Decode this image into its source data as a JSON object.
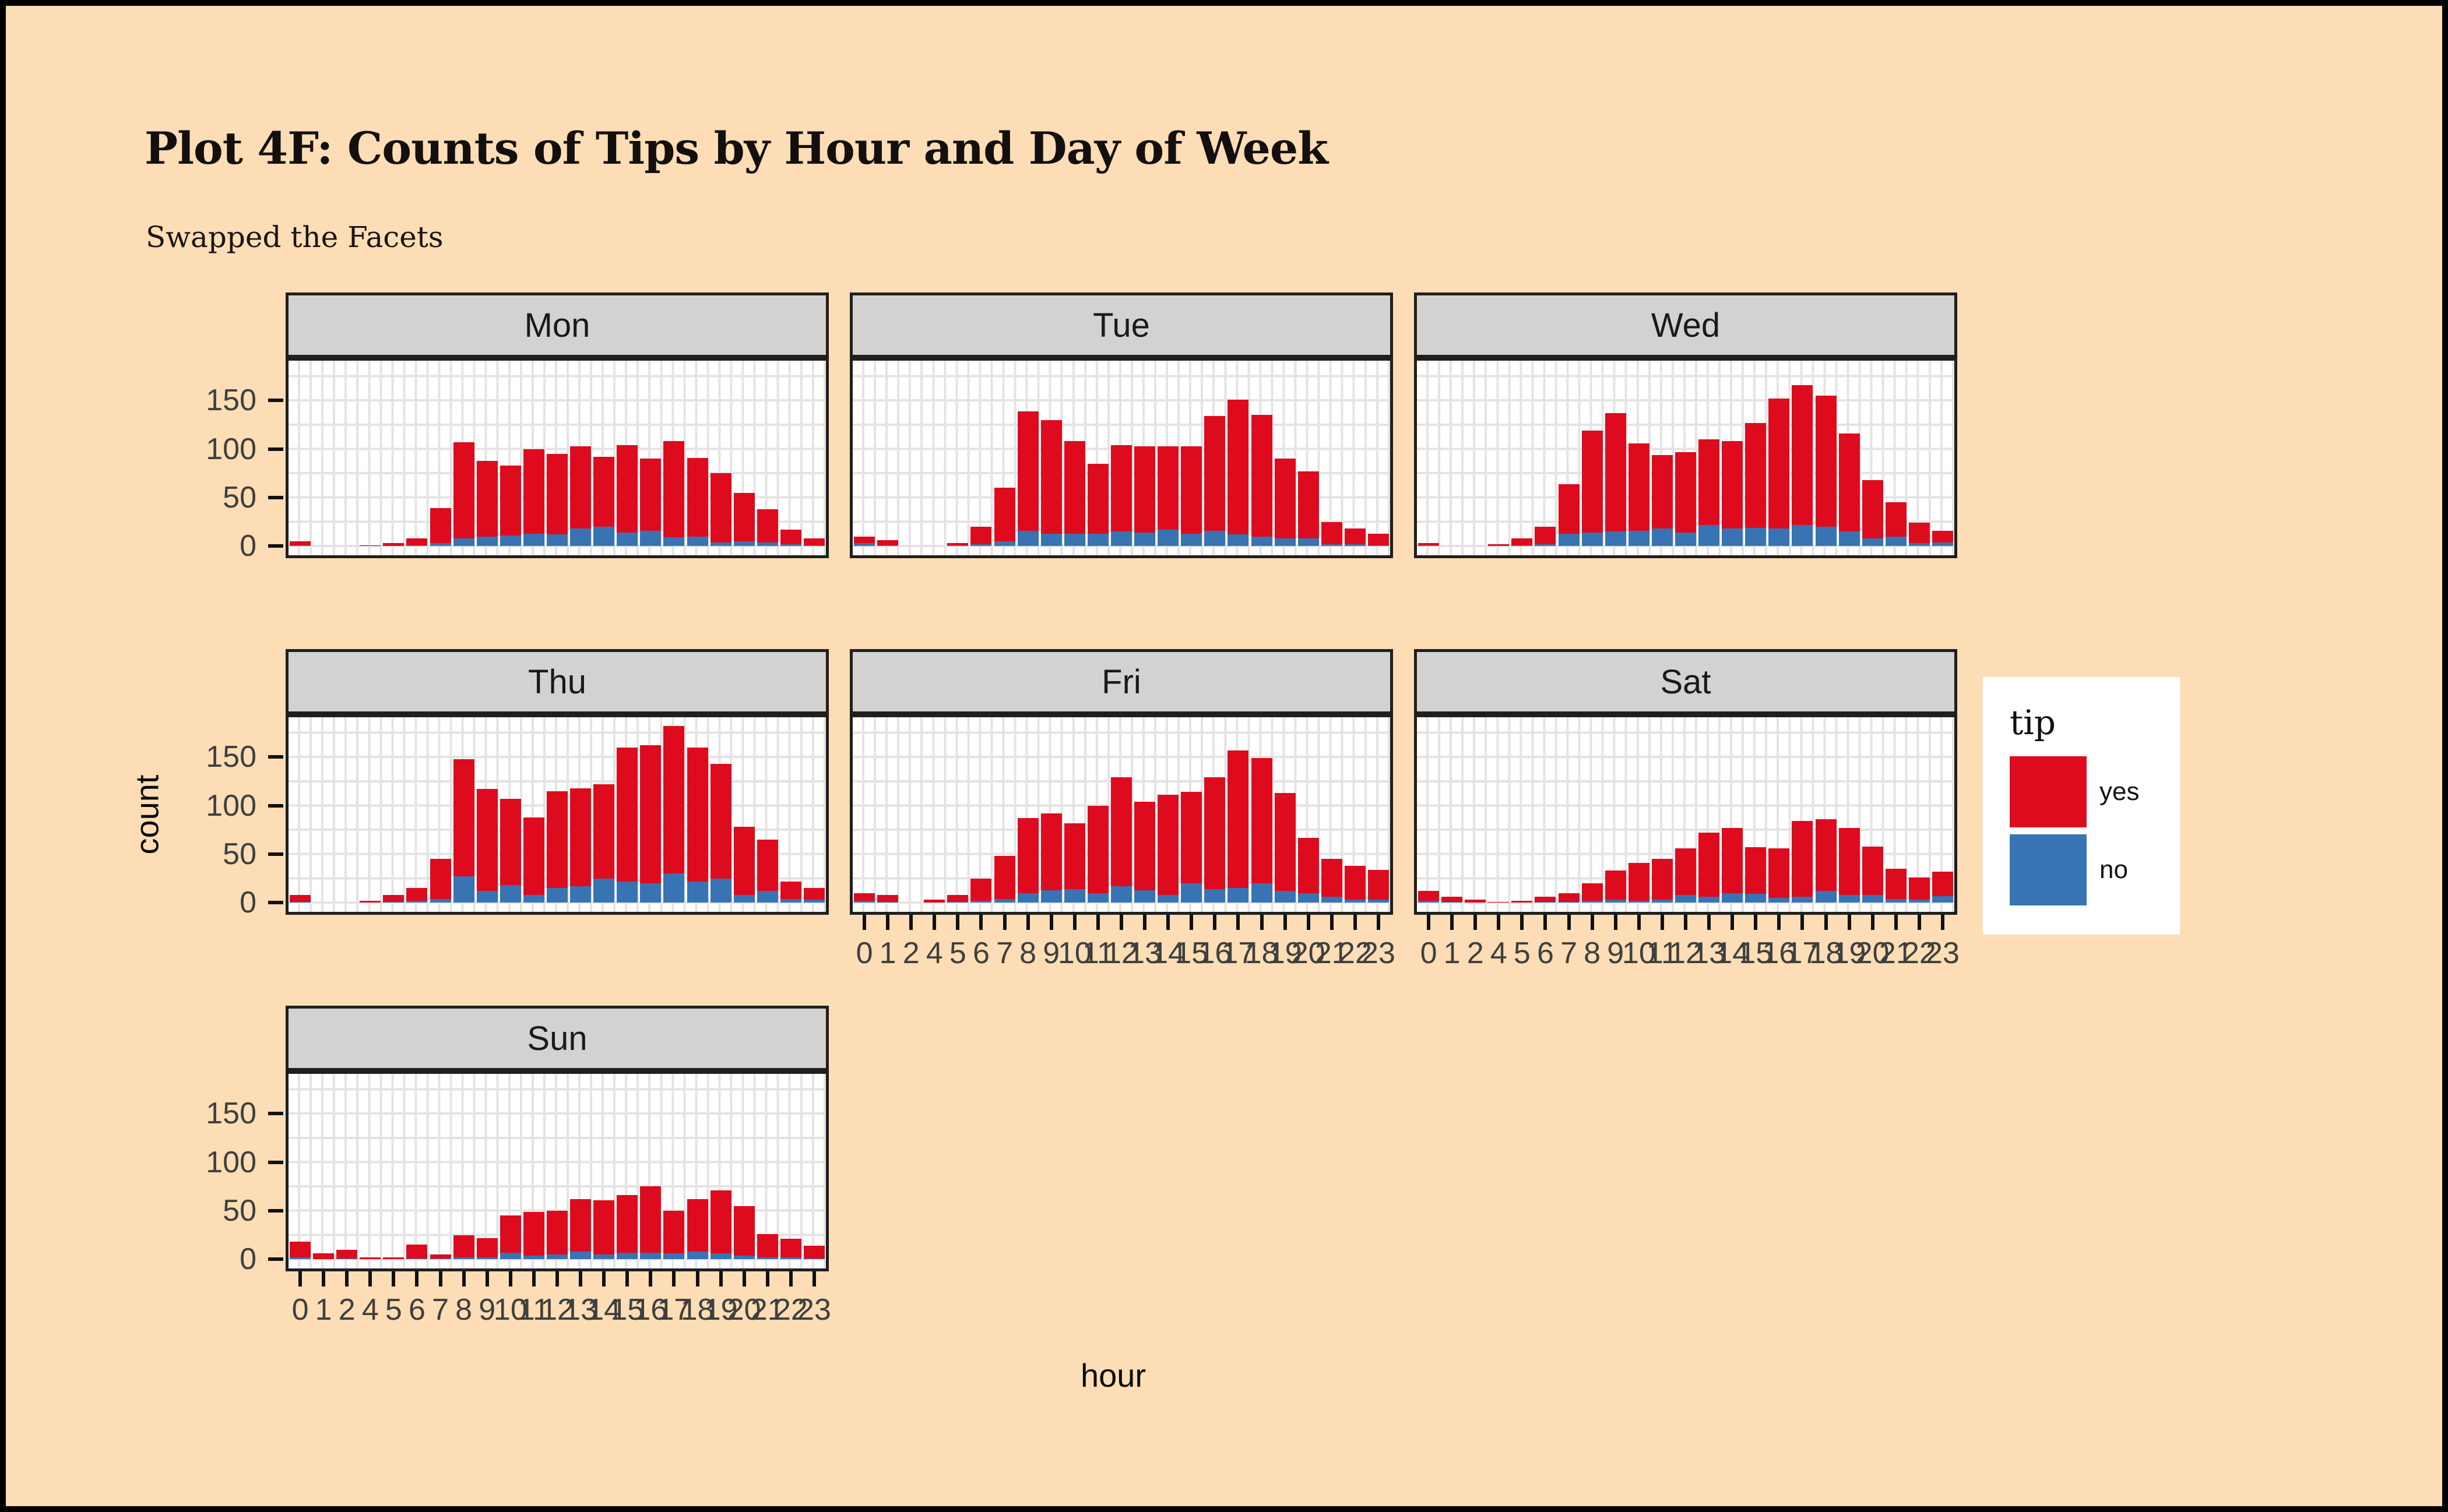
{
  "window": {
    "background_color": "#FCDDB5",
    "frame_color": "#000000"
  },
  "header": {
    "title": "Plot 4F: Counts of Tips by Hour and Day of Week",
    "subtitle": "Swapped the Facets"
  },
  "axes": {
    "x_title": "hour",
    "y_title": "count",
    "y_tick_labels": [
      "0",
      "50",
      "100",
      "150"
    ],
    "y_tick_values": [
      0,
      50,
      100,
      150
    ]
  },
  "legend": {
    "title": "tip",
    "items": [
      {
        "label": "yes",
        "color": "#DE0B1E"
      },
      {
        "label": "no",
        "color": "#3873B4"
      }
    ]
  },
  "chart_data": {
    "type": "bar",
    "stacked": true,
    "grid": "on",
    "legend_position": "right",
    "title": "Plot 4F: Counts of Tips by Hour and Day of Week",
    "xlabel": "hour",
    "ylabel": "count",
    "ylim": [
      0,
      191
    ],
    "y_minor_step": 25,
    "colors": {
      "yes": "#DE0B1E",
      "no": "#3873B4"
    },
    "categories": [
      "0",
      "1",
      "2",
      "4",
      "5",
      "6",
      "7",
      "8",
      "9",
      "10",
      "11",
      "12",
      "13",
      "14",
      "15",
      "16",
      "17",
      "18",
      "19",
      "20",
      "21",
      "22",
      "23"
    ],
    "facets": [
      {
        "name": "Mon",
        "series": [
          {
            "name": "no",
            "values": [
              1,
              0,
              0,
              0,
              0,
              1,
              3,
              8,
              10,
              11,
              13,
              12,
              18,
              20,
              14,
              16,
              9,
              10,
              4,
              5,
              4,
              2,
              1
            ]
          },
          {
            "name": "yes",
            "values": [
              4,
              0,
              0,
              1,
              3,
              7,
              36,
              99,
              78,
              72,
              87,
              83,
              85,
              72,
              90,
              74,
              99,
              81,
              71,
              50,
              34,
              15,
              7
            ]
          }
        ]
      },
      {
        "name": "Tue",
        "series": [
          {
            "name": "no",
            "values": [
              3,
              1,
              0,
              0,
              1,
              2,
              5,
              16,
              13,
              13,
              13,
              15,
              14,
              17,
              13,
              16,
              12,
              10,
              8,
              8,
              2,
              2,
              1
            ]
          },
          {
            "name": "yes",
            "values": [
              7,
              5,
              0,
              0,
              2,
              18,
              55,
              123,
              117,
              95,
              72,
              89,
              89,
              86,
              90,
              118,
              139,
              125,
              82,
              69,
              23,
              16,
              12
            ]
          }
        ]
      },
      {
        "name": "Wed",
        "series": [
          {
            "name": "no",
            "values": [
              1,
              0,
              0,
              0,
              1,
              2,
              13,
              14,
              15,
              16,
              18,
              14,
              22,
              18,
              19,
              18,
              22,
              20,
              15,
              8,
              10,
              3,
              4
            ]
          },
          {
            "name": "yes",
            "values": [
              2,
              0,
              0,
              2,
              7,
              18,
              51,
              105,
              122,
              90,
              76,
              83,
              88,
              90,
              108,
              134,
              144,
              135,
              101,
              60,
              35,
              21,
              12
            ]
          }
        ]
      },
      {
        "name": "Thu",
        "series": [
          {
            "name": "no",
            "values": [
              1,
              0,
              0,
              0,
              1,
              2,
              4,
              27,
              12,
              18,
              8,
              15,
              17,
              25,
              22,
              20,
              30,
              22,
              25,
              8,
              12,
              4,
              3
            ]
          },
          {
            "name": "yes",
            "values": [
              7,
              0,
              0,
              2,
              7,
              13,
              41,
              121,
              105,
              89,
              80,
              100,
              101,
              97,
              138,
              142,
              152,
              138,
              118,
              70,
              53,
              18,
              12
            ]
          }
        ]
      },
      {
        "name": "Fri",
        "series": [
          {
            "name": "no",
            "values": [
              2,
              1,
              0,
              0,
              1,
              2,
              4,
              10,
              13,
              14,
              10,
              17,
              13,
              8,
              20,
              14,
              15,
              20,
              12,
              10,
              6,
              3,
              3
            ]
          },
          {
            "name": "yes",
            "values": [
              8,
              7,
              0,
              3,
              7,
              23,
              44,
              77,
              79,
              68,
              90,
              112,
              91,
              103,
              94,
              115,
              142,
              129,
              101,
              57,
              39,
              35,
              31
            ]
          }
        ]
      },
      {
        "name": "Sat",
        "series": [
          {
            "name": "no",
            "values": [
              2,
              1,
              0,
              0,
              0,
              1,
              1,
              2,
              3,
              2,
              3,
              8,
              6,
              10,
              9,
              5,
              6,
              12,
              8,
              8,
              4,
              3,
              7
            ]
          },
          {
            "name": "yes",
            "values": [
              10,
              5,
              3,
              1,
              2,
              5,
              9,
              18,
              30,
              39,
              42,
              48,
              66,
              67,
              48,
              51,
              78,
              74,
              69,
              50,
              31,
              23,
              25
            ]
          }
        ]
      },
      {
        "name": "Sun",
        "series": [
          {
            "name": "no",
            "values": [
              2,
              0,
              1,
              0,
              0,
              1,
              1,
              2,
              2,
              7,
              4,
              5,
              8,
              5,
              7,
              7,
              6,
              8,
              6,
              4,
              2,
              2,
              1
            ]
          },
          {
            "name": "yes",
            "values": [
              16,
              6,
              9,
              2,
              2,
              14,
              4,
              23,
              20,
              38,
              45,
              45,
              54,
              56,
              59,
              68,
              44,
              54,
              65,
              51,
              24,
              19,
              13
            ]
          }
        ]
      }
    ]
  }
}
